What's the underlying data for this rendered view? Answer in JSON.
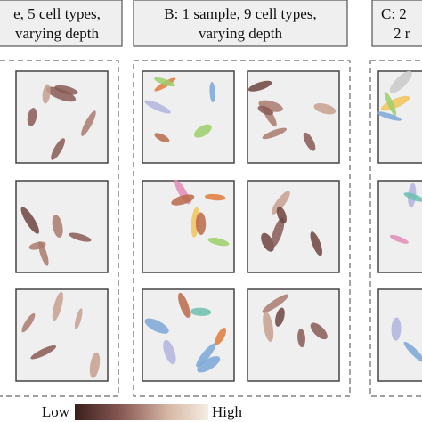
{
  "panels": [
    {
      "title_lines": [
        "e, 5 cell types,",
        "varying depth"
      ]
    },
    {
      "title_lines": [
        "B: 1 sample, 9 cell types,",
        "varying depth"
      ]
    },
    {
      "title_lines": [
        "C: 2",
        "2 r"
      ]
    }
  ],
  "colorbar": {
    "low_label": "Low",
    "high_label": "High"
  }
}
